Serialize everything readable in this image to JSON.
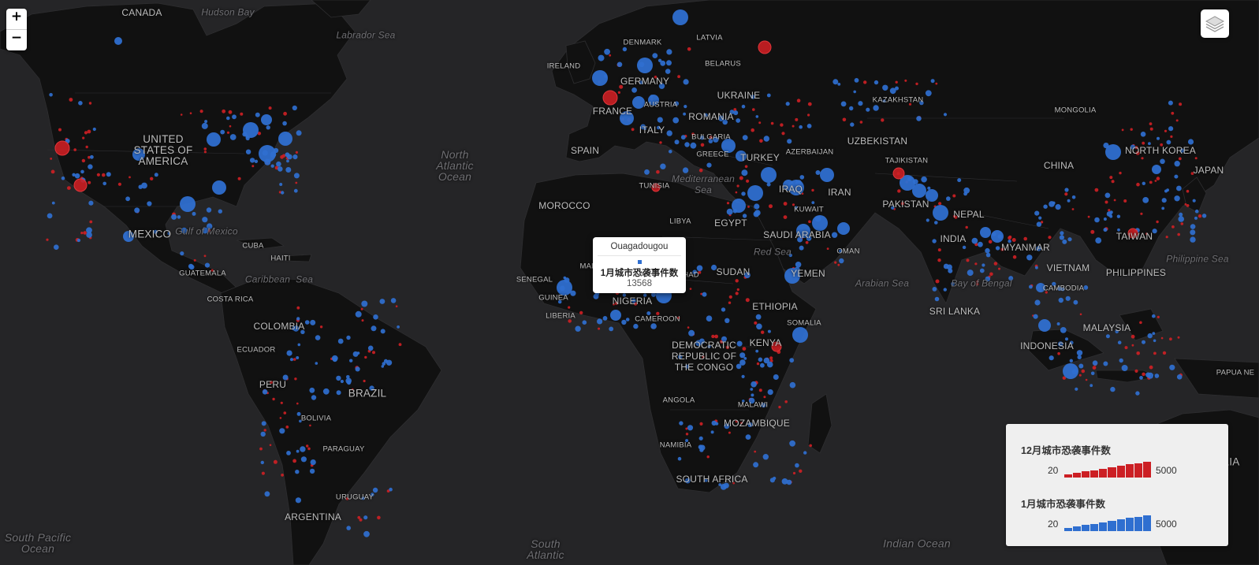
{
  "map": {
    "countries": [
      "CANADA",
      "UNITED\nSTATES OF\nAMERICA",
      "MEXICO",
      "CUBA",
      "HAITI",
      "GUATEMALA",
      "COSTA RICA",
      "COLOMBIA",
      "ECUADOR",
      "PERU",
      "BRAZIL",
      "BOLIVIA",
      "PARAGUAY",
      "URUGUAY",
      "ARGENTINA",
      "IRELAND",
      "DENMARK",
      "LATVIA",
      "BELARUS",
      "GERMANY",
      "AUSTRIA",
      "FRANCE",
      "SPAIN",
      "ITALY",
      "ROMANIA",
      "BULGARIA",
      "GREECE",
      "UKRAINE",
      "KAZAKHSTAN",
      "MONGOLIA",
      "UZBEKISTAN",
      "AZERBAIJAN",
      "TURKEY",
      "TUNISIA",
      "MOROCCO",
      "LIBYA",
      "EGYPT",
      "IRAQ",
      "IRAN",
      "KUWAIT",
      "SAUDI ARABIA",
      "OMAN",
      "YEMEN",
      "SUDAN",
      "ETHIOPIA",
      "SOMALIA",
      "KENYA",
      "SENEGAL",
      "GUINEA",
      "LIBERIA",
      "MALI",
      "CHAD",
      "NIGERIA",
      "CAMEROON",
      "DEMOCRATIC\nREPUBLIC OF\nTHE CONGO",
      "ANGOLA",
      "MALAWI",
      "MOZAMBIQUE",
      "NAMIBIA",
      "SOUTH AFRICA",
      "TAJIKISTAN",
      "PAKISTAN",
      "NEPAL",
      "INDIA",
      "SRI LANKA",
      "MYANMAR",
      "CHINA",
      "NORTH KOREA",
      "JAPAN",
      "TAIWAN",
      "VIETNAM",
      "CAMBODIA",
      "PHILIPPINES",
      "MALAYSIA",
      "INDONESIA",
      "PAPUA NE",
      "AUSTRALIA"
    ],
    "seas": [
      "Hudson Bay",
      "Labrador Sea",
      "North\nAtlantic\nOcean",
      "Gulf of Mexico",
      "Caribbean  Sea",
      "Mediterranean\nSea",
      "Red Sea",
      "Arabian Sea",
      "Bay of Bengal",
      "Philippine Sea",
      "South Pacific\nOcean",
      "South\nAtlantic",
      "Indian Ocean"
    ],
    "land_color": "#111111",
    "water_color": "#252527",
    "marker_colors": {
      "december": "#cc1f24",
      "january": "#2f6fd0"
    }
  },
  "zoom_controls": {
    "in_label": "+",
    "out_label": "−"
  },
  "layers_button": {
    "icon": "layers-icon"
  },
  "popup": {
    "city": "Ouagadougou",
    "series_label": "1月城市恐袭事件数",
    "value": "13568"
  },
  "legend": {
    "december": {
      "title": "12月城市恐袭事件数",
      "min": "20",
      "max": "5000",
      "color": "#cc1f24"
    },
    "january": {
      "title": "1月城市恐袭事件数",
      "min": "20",
      "max": "5000",
      "color": "#2f6fd0"
    }
  }
}
